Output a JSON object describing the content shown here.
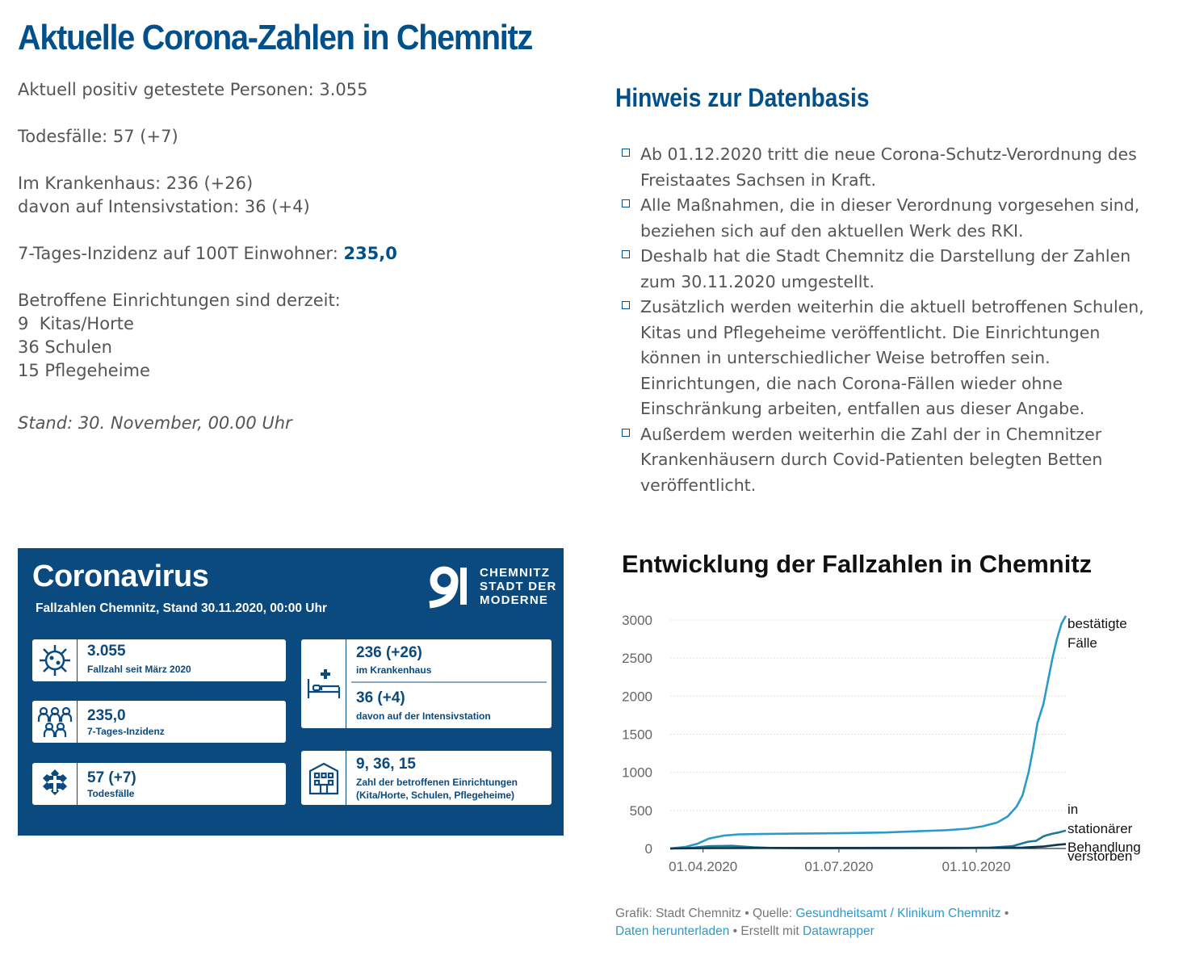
{
  "page": {
    "title": "Aktuelle Corona-Zahlen in Chemnitz"
  },
  "stats": {
    "positive": "Aktuell positiv getestete Personen: 3.055",
    "deaths": "Todesfälle: 57 (+7)",
    "hospital": "Im Krankenhaus: 236 (+26)",
    "icu": "davon auf Intensivstation: 36 (+4)",
    "incidence_label": "7-Tages-Inzidenz auf 100T Einwohner: ",
    "incidence_value": "235,0",
    "facilities_heading": "Betroffene Einrichtungen sind derzeit:",
    "facilities": [
      "9  Kitas/Horte",
      "36 Schulen",
      "15 Pflegeheime"
    ],
    "stand": "Stand: 30. November, 00.00 Uhr"
  },
  "notes": {
    "heading": "Hinweis zur Datenbasis",
    "items": [
      "Ab 01.12.2020 tritt die neue Corona-Schutz-Verordnung des Freistaates Sachsen in Kraft.",
      "Alle Maßnahmen, die in dieser Verordnung vorgesehen sind, beziehen sich auf den aktuellen Werk des RKI.",
      "Deshalb hat die Stadt Chemnitz die Darstellung der Zahlen zum 30.11.2020 umgestellt.",
      "Zusätzlich werden weiterhin die aktuell betroffenen Schulen, Kitas und Pflegeheime veröffentlicht. Die Einrichtungen können in unterschiedlicher Weise betroffen sein. Einrichtungen, die nach Corona-Fällen wieder ohne Einschränkung arbeiten, entfallen aus dieser Angabe.",
      "Außerdem werden weiterhin die Zahl der in Chemnitzer Krankenhäusern durch Covid-Patienten belegten Betten veröffentlicht."
    ]
  },
  "infographic": {
    "heading": "Coronavirus",
    "subtitle": "Fallzahlen Chemnitz, Stand 30.11.2020, 00:00 Uhr",
    "logo_lines": [
      "CHEMNITZ",
      "STADT DER",
      "MODERNE"
    ],
    "cases_value": "3.055",
    "cases_label": "Fallzahl seit März 2020",
    "incidence_value": "235,0",
    "incidence_label": "7-Tages-Inzidenz",
    "deaths_value": "57 (+7)",
    "deaths_label": "Todesfälle",
    "hospital_value": "236 (+26)",
    "hospital_label": "im Krankenhaus",
    "icu_value": "36 (+4)",
    "icu_label": "davon auf der Intensivstation",
    "facilities_value": "9, 36, 15",
    "facilities_label1": "Zahl der betroffenen Einrichtungen",
    "facilities_label2": "(Kita/Horte, Schulen, Pflegeheime)",
    "colors": {
      "background": "#0a4a7f",
      "card": "#ffffff"
    },
    "icons": [
      "virus-icon",
      "people-icon",
      "cross-icon",
      "hospital-bed-icon",
      "building-icon",
      "city-logo-icon"
    ]
  },
  "chart_data": {
    "type": "line",
    "title": "Entwicklung der Fallzahlen in Chemnitz",
    "ylim": [
      0,
      3000
    ],
    "yticks": [
      "0",
      "500",
      "1000",
      "1500",
      "2000",
      "2500",
      "3000"
    ],
    "xticks": [
      "01.04.2020",
      "01.07.2020",
      "01.10.2020"
    ],
    "xtick_dates": [
      "2020-04-01",
      "2020-07-01",
      "2020-10-01"
    ],
    "xlim": [
      "2020-03-10",
      "2020-11-30"
    ],
    "series": [
      {
        "name": "bestätigte Fälle",
        "label_lines": [
          "bestätigte",
          "Fälle"
        ],
        "color": "#2a9bc9",
        "points": [
          [
            "2020-03-10",
            0
          ],
          [
            "2020-03-20",
            20
          ],
          [
            "2020-03-28",
            60
          ],
          [
            "2020-04-05",
            130
          ],
          [
            "2020-04-15",
            170
          ],
          [
            "2020-04-25",
            185
          ],
          [
            "2020-05-10",
            190
          ],
          [
            "2020-06-01",
            195
          ],
          [
            "2020-07-01",
            200
          ],
          [
            "2020-08-01",
            210
          ],
          [
            "2020-08-20",
            225
          ],
          [
            "2020-09-10",
            240
          ],
          [
            "2020-09-25",
            260
          ],
          [
            "2020-10-05",
            290
          ],
          [
            "2020-10-15",
            340
          ],
          [
            "2020-10-22",
            420
          ],
          [
            "2020-10-28",
            550
          ],
          [
            "2020-11-01",
            700
          ],
          [
            "2020-11-05",
            1000
          ],
          [
            "2020-11-08",
            1300
          ],
          [
            "2020-11-11",
            1650
          ],
          [
            "2020-11-15",
            1900
          ],
          [
            "2020-11-18",
            2200
          ],
          [
            "2020-11-21",
            2500
          ],
          [
            "2020-11-24",
            2750
          ],
          [
            "2020-11-27",
            2950
          ],
          [
            "2020-11-30",
            3055
          ]
        ]
      },
      {
        "name": "in stationärer Behandlung",
        "label_lines": [
          "in",
          "stationärer",
          "Behandlung"
        ],
        "color": "#1f7a9a",
        "points": [
          [
            "2020-03-10",
            0
          ],
          [
            "2020-03-25",
            10
          ],
          [
            "2020-04-05",
            30
          ],
          [
            "2020-04-20",
            35
          ],
          [
            "2020-05-05",
            15
          ],
          [
            "2020-05-20",
            5
          ],
          [
            "2020-06-10",
            2
          ],
          [
            "2020-08-01",
            2
          ],
          [
            "2020-09-15",
            4
          ],
          [
            "2020-10-10",
            10
          ],
          [
            "2020-10-25",
            30
          ],
          [
            "2020-11-05",
            90
          ],
          [
            "2020-11-10",
            100
          ],
          [
            "2020-11-15",
            160
          ],
          [
            "2020-11-20",
            190
          ],
          [
            "2020-11-25",
            210
          ],
          [
            "2020-11-30",
            236
          ]
        ]
      },
      {
        "name": "verstorben",
        "label_lines": [
          "verstorben"
        ],
        "color": "#0b3954",
        "points": [
          [
            "2020-03-10",
            0
          ],
          [
            "2020-04-10",
            5
          ],
          [
            "2020-05-10",
            7
          ],
          [
            "2020-10-01",
            8
          ],
          [
            "2020-11-01",
            12
          ],
          [
            "2020-11-15",
            25
          ],
          [
            "2020-11-25",
            50
          ],
          [
            "2020-11-30",
            57
          ]
        ]
      }
    ]
  },
  "credit": {
    "prefix": "Grafik: Stadt Chemnitz • Quelle: ",
    "source_link": "Gesundheitsamt / Klinikum Chemnitz",
    "sep": " •",
    "download_link": "Daten herunterladen",
    "made_with": " • Erstellt mit ",
    "tool_link": "Datawrapper"
  }
}
